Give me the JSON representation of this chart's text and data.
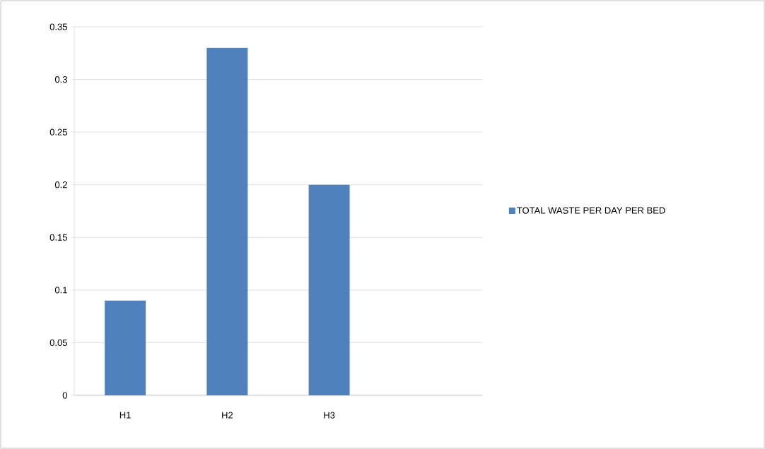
{
  "chart_data": {
    "type": "bar",
    "categories": [
      "H1",
      "H2",
      "H3",
      null
    ],
    "series": [
      {
        "name": "TOTAL WASTE PER DAY PER BED",
        "color": "#4f81bd",
        "values": [
          0.09,
          0.33,
          0.2,
          null
        ]
      }
    ],
    "ylim": [
      0,
      0.35
    ],
    "yticks": [
      0,
      0.05,
      0.1,
      0.15,
      0.2,
      0.25,
      0.3,
      0.35
    ],
    "grid": "y",
    "legend": "right"
  }
}
